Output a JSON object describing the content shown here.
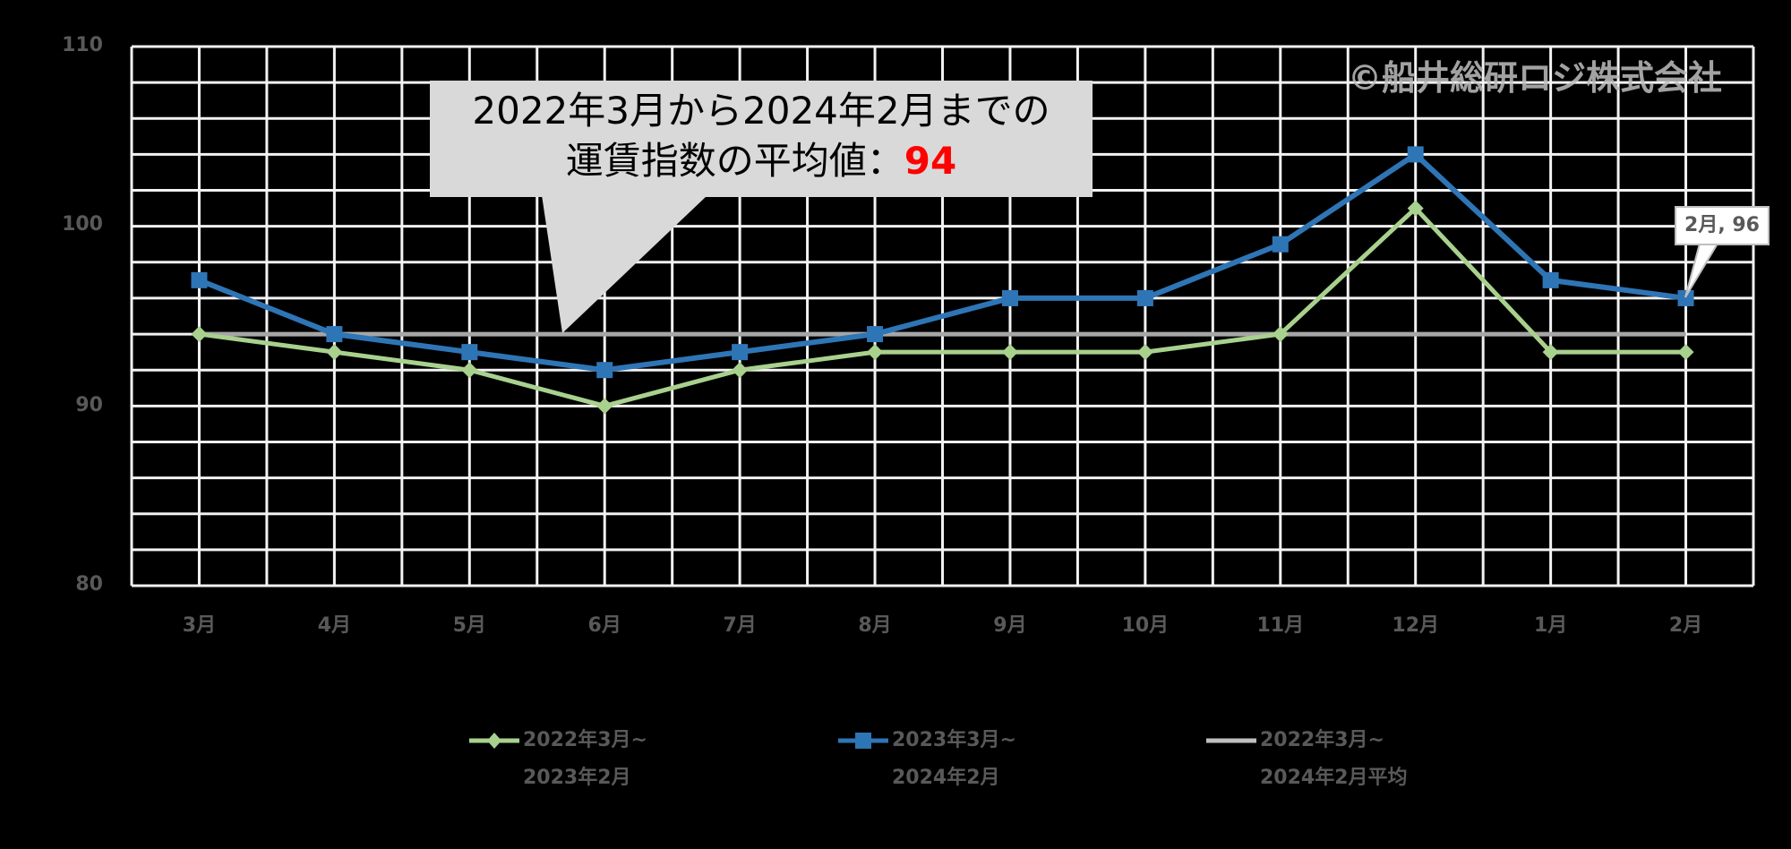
{
  "chart_data": {
    "type": "line",
    "title": "",
    "categories": [
      "3月",
      "4月",
      "5月",
      "6月",
      "7月",
      "8月",
      "9月",
      "10月",
      "11月",
      "12月",
      "1月",
      "2月"
    ],
    "series": [
      {
        "name": "2022年3月~2023年2月",
        "color": "#a9d18e",
        "marker": "diamond",
        "values": [
          94,
          93,
          92,
          90,
          92,
          93,
          93,
          93,
          94,
          101,
          93,
          93
        ]
      },
      {
        "name": "2023年3月~2024年2月",
        "color": "#2e75b6",
        "marker": "square",
        "values": [
          97,
          94,
          93,
          92,
          93,
          94,
          96,
          96,
          99,
          104,
          97,
          96
        ]
      },
      {
        "name": "2022年3月~2024年2月平均",
        "color": "#a6a6a6",
        "marker": "none",
        "values": [
          94,
          94,
          94,
          94,
          94,
          94,
          94,
          94,
          94,
          94,
          94,
          94
        ]
      }
    ],
    "xlabel": "",
    "ylabel": "",
    "ylim": [
      80,
      110
    ],
    "yticks": [
      80,
      90,
      100,
      110
    ],
    "grid": true,
    "legend_position": "bottom",
    "annotations": [
      {
        "type": "callout",
        "text": "2022年3月から2024年2月までの運賃指数の平均値：94"
      },
      {
        "type": "data_label",
        "text": "2月, 96",
        "series": 1,
        "index": 11
      }
    ]
  },
  "y_axis": {
    "ticks": [
      "110",
      "100",
      "90",
      "80"
    ]
  },
  "callout": {
    "line1": "2022年3月から2024年2月までの",
    "line2": "運賃指数の平均値：",
    "value": "94"
  },
  "watermark": "©船井総研ロジ株式会社",
  "data_label": "2月, 96",
  "legend": [
    {
      "line1": "2022年3月~",
      "line2": "2023年2月"
    },
    {
      "line1": "2023年3月~",
      "line2": "2024年2月"
    },
    {
      "line1": "2022年3月~",
      "line2": "2024年2月平均"
    }
  ]
}
